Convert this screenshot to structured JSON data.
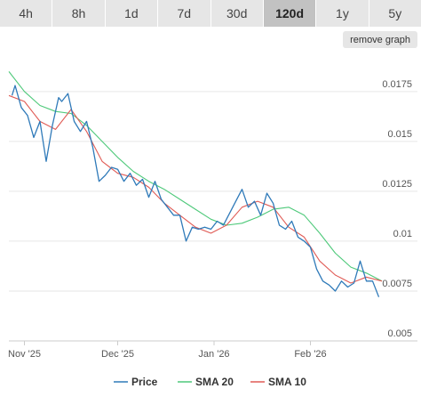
{
  "timeframes": {
    "items": [
      {
        "label": "4h",
        "active": false
      },
      {
        "label": "8h",
        "active": false
      },
      {
        "label": "1d",
        "active": false
      },
      {
        "label": "7d",
        "active": false
      },
      {
        "label": "30d",
        "active": false
      },
      {
        "label": "120d",
        "active": true
      },
      {
        "label": "1y",
        "active": false
      },
      {
        "label": "5y",
        "active": false
      }
    ]
  },
  "remove_graph_label": "remove graph",
  "chart_data": {
    "type": "line",
    "y_ticks": [
      "0.0175",
      "0.015",
      "0.0125",
      "0.01",
      "0.0075",
      "0.005"
    ],
    "y_tick_values": [
      0.0175,
      0.015,
      0.0125,
      0.01,
      0.0075,
      0.005
    ],
    "ylim": [
      0.005,
      0.0195
    ],
    "x_ticks": [
      "Nov '25",
      "Dec '25",
      "Jan '26",
      "Feb '26"
    ],
    "x_tick_dates": [
      "2025-11-01",
      "2025-12-01",
      "2026-01-01",
      "2026-02-01"
    ],
    "x_range": [
      "2025-10-27",
      "2026-02-24"
    ],
    "grid": true,
    "legend_position": "bottom",
    "series": [
      {
        "name": "Price",
        "color": "#2f7ab9",
        "x": [
          "2025-10-28",
          "2025-10-29",
          "2025-10-31",
          "2025-11-02",
          "2025-11-04",
          "2025-11-06",
          "2025-11-08",
          "2025-11-10",
          "2025-11-12",
          "2025-11-13",
          "2025-11-15",
          "2025-11-17",
          "2025-11-19",
          "2025-11-21",
          "2025-11-23",
          "2025-11-25",
          "2025-11-27",
          "2025-11-29",
          "2025-12-01",
          "2025-12-03",
          "2025-12-05",
          "2025-12-07",
          "2025-12-09",
          "2025-12-11",
          "2025-12-13",
          "2025-12-15",
          "2025-12-17",
          "2025-12-19",
          "2025-12-21",
          "2025-12-23",
          "2025-12-25",
          "2025-12-27",
          "2025-12-29",
          "2025-12-31",
          "2026-01-02",
          "2026-01-04",
          "2026-01-06",
          "2026-01-08",
          "2026-01-10",
          "2026-01-12",
          "2026-01-14",
          "2026-01-16",
          "2026-01-18",
          "2026-01-20",
          "2026-01-22",
          "2026-01-24",
          "2026-01-26",
          "2026-01-28",
          "2026-01-30",
          "2026-02-01",
          "2026-02-03",
          "2026-02-05",
          "2026-02-07",
          "2026-02-09",
          "2026-02-11",
          "2026-02-13",
          "2026-02-15",
          "2026-02-17",
          "2026-02-19",
          "2026-02-21",
          "2026-02-23"
        ],
        "y": [
          0.0173,
          0.0178,
          0.0167,
          0.0163,
          0.0152,
          0.016,
          0.014,
          0.0158,
          0.0172,
          0.017,
          0.0174,
          0.016,
          0.0155,
          0.016,
          0.0147,
          0.013,
          0.0133,
          0.0137,
          0.0136,
          0.013,
          0.0134,
          0.0128,
          0.0131,
          0.0122,
          0.013,
          0.0121,
          0.0117,
          0.0113,
          0.0113,
          0.01,
          0.0107,
          0.0106,
          0.0107,
          0.0106,
          0.011,
          0.0108,
          0.0114,
          0.012,
          0.0126,
          0.0117,
          0.012,
          0.0113,
          0.0124,
          0.0119,
          0.0108,
          0.0106,
          0.011,
          0.0102,
          0.01,
          0.0097,
          0.0086,
          0.008,
          0.0078,
          0.0075,
          0.008,
          0.0077,
          0.0079,
          0.009,
          0.008,
          0.008,
          0.0072
        ]
      },
      {
        "name": "SMA 20",
        "color": "#4ec97a",
        "x": [
          "2025-10-27",
          "2025-11-01",
          "2025-11-06",
          "2025-11-11",
          "2025-11-16",
          "2025-11-21",
          "2025-11-26",
          "2025-12-01",
          "2025-12-06",
          "2025-12-11",
          "2025-12-16",
          "2025-12-21",
          "2025-12-26",
          "2025-12-31",
          "2026-01-05",
          "2026-01-10",
          "2026-01-15",
          "2026-01-20",
          "2026-01-25",
          "2026-01-30",
          "2026-02-04",
          "2026-02-09",
          "2026-02-14",
          "2026-02-19",
          "2026-02-24"
        ],
        "y": [
          0.0185,
          0.0175,
          0.0168,
          0.0165,
          0.0164,
          0.0158,
          0.015,
          0.0142,
          0.0135,
          0.013,
          0.0126,
          0.0121,
          0.0116,
          0.0111,
          0.0108,
          0.0109,
          0.0112,
          0.0116,
          0.0117,
          0.0113,
          0.0104,
          0.0094,
          0.0087,
          0.0084,
          0.008
        ]
      },
      {
        "name": "SMA 10",
        "color": "#e05b55",
        "x": [
          "2025-10-27",
          "2025-11-01",
          "2025-11-06",
          "2025-11-11",
          "2025-11-16",
          "2025-11-21",
          "2025-11-26",
          "2025-12-01",
          "2025-12-06",
          "2025-12-11",
          "2025-12-16",
          "2025-12-21",
          "2025-12-26",
          "2025-12-31",
          "2026-01-05",
          "2026-01-10",
          "2026-01-15",
          "2026-01-20",
          "2026-01-25",
          "2026-01-30",
          "2026-02-04",
          "2026-02-09",
          "2026-02-14",
          "2026-02-19",
          "2026-02-24"
        ],
        "y": [
          0.0173,
          0.017,
          0.016,
          0.0156,
          0.0166,
          0.0155,
          0.014,
          0.0134,
          0.0132,
          0.0127,
          0.0119,
          0.0113,
          0.0107,
          0.0104,
          0.0108,
          0.0117,
          0.012,
          0.0117,
          0.0107,
          0.0102,
          0.009,
          0.0083,
          0.0079,
          0.0082,
          0.008
        ]
      }
    ]
  }
}
